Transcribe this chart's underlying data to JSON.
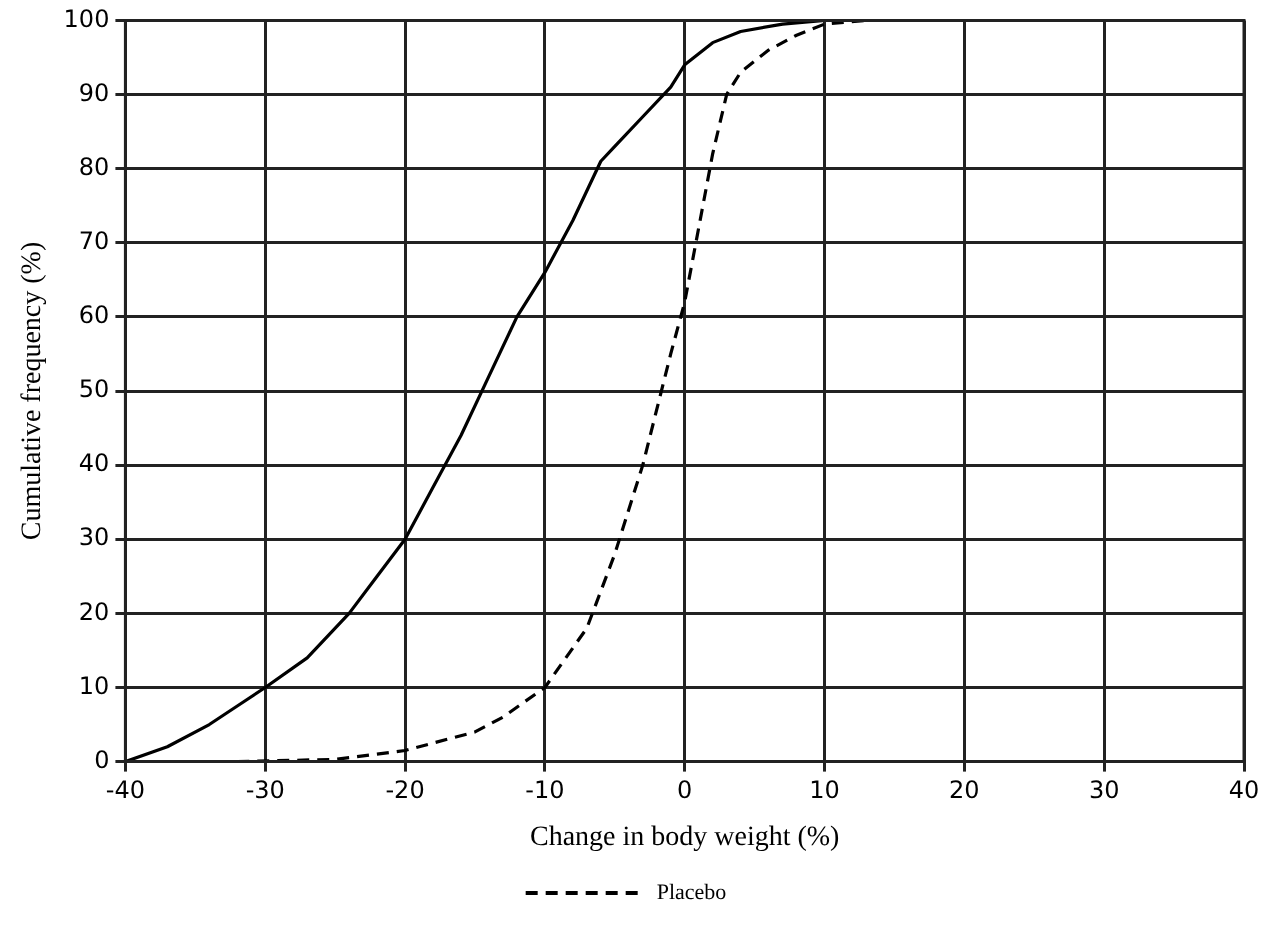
{
  "chart_data": {
    "type": "line",
    "xlabel": "Change in body weight (%)",
    "ylabel": "Cumulative frequency (%)",
    "xlim": [
      -40,
      40
    ],
    "xticks": [
      -40,
      -30,
      -20,
      -10,
      0,
      10,
      20,
      30,
      40
    ],
    "ylim": [
      0,
      100
    ],
    "yticks": [
      0,
      10,
      20,
      30,
      40,
      50,
      60,
      70,
      80,
      90,
      100
    ],
    "grid": true,
    "legend": "bottom",
    "marker": "none",
    "series": [
      {
        "color": "#000000",
        "line_style": "solid",
        "x": [
          -40,
          -37,
          -34,
          -32,
          -30,
          -27,
          -24,
          -22,
          -20,
          -18,
          -16,
          -14,
          -12,
          -10,
          -8,
          -6,
          -5,
          -3,
          -1,
          0,
          2,
          4,
          7,
          10,
          17.5
        ],
        "values": [
          0,
          2,
          5,
          7.5,
          10,
          14,
          20,
          25,
          30,
          37,
          44,
          52,
          60,
          66,
          73,
          81,
          83,
          87,
          91,
          94,
          97,
          98.5,
          99.5,
          100,
          100
        ]
      },
      {
        "name": "Placebo",
        "color": "#000000",
        "line_style": "dashed",
        "x": [
          -32,
          -25,
          -20,
          -15,
          -13,
          -10,
          -7,
          -5,
          -3,
          -1,
          0,
          1,
          2,
          3,
          4,
          6,
          8,
          10,
          13
        ],
        "values": [
          0,
          0.3,
          1.5,
          4,
          6,
          10,
          18,
          28,
          40,
          55,
          62,
          72,
          82,
          90,
          93,
          96,
          98,
          99.5,
          100
        ]
      }
    ]
  }
}
